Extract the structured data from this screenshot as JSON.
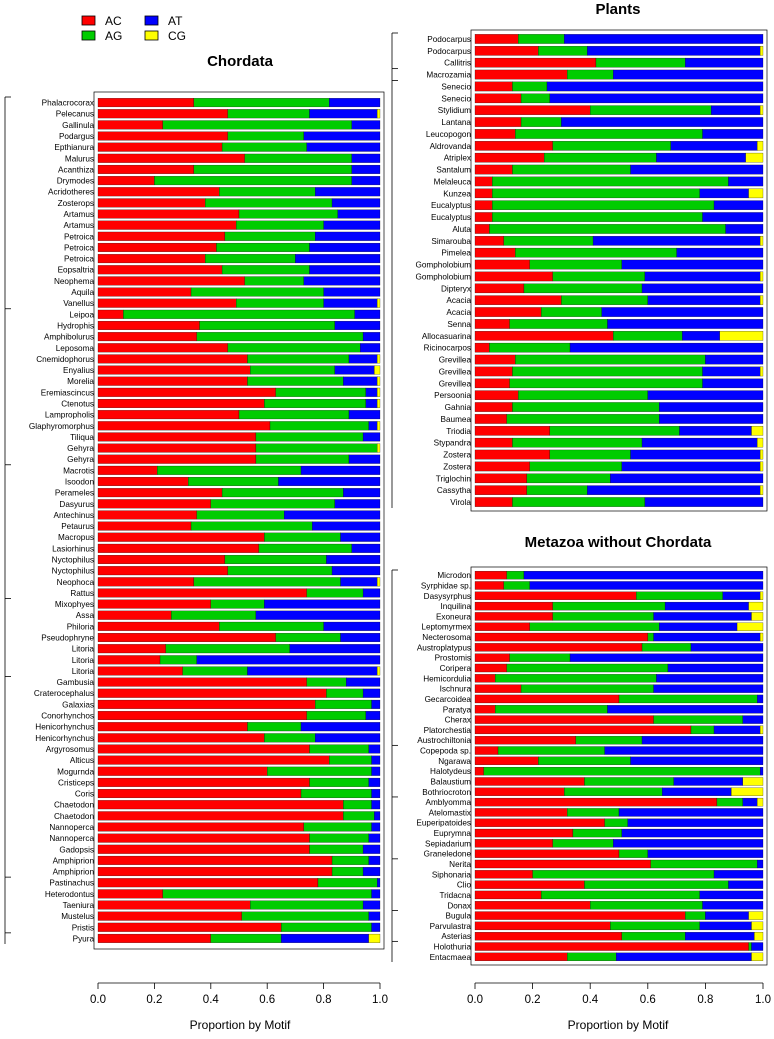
{
  "legend": {
    "items": [
      {
        "label": "AC",
        "color": "#ff0000"
      },
      {
        "label": "AG",
        "color": "#00cc00"
      },
      {
        "label": "AT",
        "color": "#0000ff"
      },
      {
        "label": "CG",
        "color": "#ffff00"
      }
    ]
  },
  "chart_data": [
    {
      "type": "bar",
      "orientation": "horizontal",
      "stacked": true,
      "title": "Chordata",
      "xlabel": "Proportion by Motif",
      "xlim": [
        0,
        1
      ],
      "xticks": [
        "0.0",
        "0.2",
        "0.4",
        "0.6",
        "0.8",
        "1.0"
      ],
      "series_names": [
        "AC",
        "AG",
        "AT",
        "CG"
      ],
      "categories": [
        "Phalacrocorax",
        "Pelecanus",
        "Gallinula",
        "Podargus",
        "Epthianura",
        "Malurus",
        "Acanthiza",
        "Drymodes",
        "Acridotheres",
        "Zosterops",
        "Artamus",
        "Artamus",
        "Petroica",
        "Petroica",
        "Petroica",
        "Eopsaltria",
        "Neophema",
        "Aquila",
        "Vanellus",
        "Leipoa",
        "Hydrophis",
        "Amphibolurus",
        "Leposoma",
        "Cnemidophorus",
        "Enyalius",
        "Morelia",
        "Eremiascincus",
        "Ctenotus",
        "Lampropholis",
        "Glaphyromorphus",
        "Tiliqua",
        "Gehyra",
        "Gehyra",
        "Macrotis",
        "Isoodon",
        "Perameles",
        "Dasyurus",
        "Antechinus",
        "Petaurus",
        "Macropus",
        "Lasiorhinus",
        "Nyctophilus",
        "Nyctophilus",
        "Neophoca",
        "Rattus",
        "Mixophyes",
        "Assa",
        "Philoria",
        "Pseudophryne",
        "Litoria",
        "Litoria",
        "Litoria",
        "Gambusia",
        "Craterocephalus",
        "Galaxias",
        "Conorhynchos",
        "Henicorhynchus",
        "Henicorhynchus",
        "Argyrosomus",
        "Alticus",
        "Mogurnda",
        "Cristiceps",
        "Coris",
        "Chaetodon",
        "Chaetodon",
        "Nannoperca",
        "Nannoperca",
        "Gadopsis",
        "Amphiprion",
        "Amphiprion",
        "Pastinachus",
        "Heterodontus",
        "Taeniura",
        "Mustelus",
        "Pristis",
        "Pyura"
      ],
      "values": [
        [
          0.34,
          0.48,
          0.18,
          0
        ],
        [
          0.46,
          0.29,
          0.24,
          0.01
        ],
        [
          0.23,
          0.67,
          0.1,
          0
        ],
        [
          0.46,
          0.27,
          0.27,
          0
        ],
        [
          0.44,
          0.3,
          0.26,
          0
        ],
        [
          0.52,
          0.38,
          0.1,
          0
        ],
        [
          0.34,
          0.56,
          0.1,
          0
        ],
        [
          0.2,
          0.7,
          0.1,
          0
        ],
        [
          0.43,
          0.34,
          0.23,
          0
        ],
        [
          0.38,
          0.45,
          0.17,
          0
        ],
        [
          0.5,
          0.35,
          0.15,
          0
        ],
        [
          0.49,
          0.31,
          0.2,
          0
        ],
        [
          0.45,
          0.32,
          0.23,
          0
        ],
        [
          0.42,
          0.33,
          0.25,
          0
        ],
        [
          0.38,
          0.32,
          0.3,
          0
        ],
        [
          0.44,
          0.31,
          0.25,
          0
        ],
        [
          0.52,
          0.21,
          0.27,
          0
        ],
        [
          0.33,
          0.47,
          0.2,
          0
        ],
        [
          0.49,
          0.31,
          0.19,
          0.01
        ],
        [
          0.09,
          0.82,
          0.09,
          0
        ],
        [
          0.36,
          0.48,
          0.16,
          0
        ],
        [
          0.35,
          0.59,
          0.06,
          0
        ],
        [
          0.46,
          0.47,
          0.07,
          0
        ],
        [
          0.53,
          0.36,
          0.1,
          0.01
        ],
        [
          0.54,
          0.3,
          0.14,
          0.02
        ],
        [
          0.53,
          0.34,
          0.12,
          0.01
        ],
        [
          0.63,
          0.32,
          0.04,
          0.01
        ],
        [
          0.59,
          0.36,
          0.04,
          0.01
        ],
        [
          0.5,
          0.39,
          0.11,
          0
        ],
        [
          0.61,
          0.35,
          0.03,
          0.01
        ],
        [
          0.56,
          0.38,
          0.06,
          0
        ],
        [
          0.56,
          0.43,
          0.0,
          0.01
        ],
        [
          0.56,
          0.33,
          0.11,
          0
        ],
        [
          0.21,
          0.51,
          0.28,
          0
        ],
        [
          0.32,
          0.32,
          0.36,
          0
        ],
        [
          0.44,
          0.43,
          0.13,
          0
        ],
        [
          0.4,
          0.44,
          0.16,
          0
        ],
        [
          0.35,
          0.31,
          0.34,
          0
        ],
        [
          0.33,
          0.43,
          0.24,
          0
        ],
        [
          0.59,
          0.27,
          0.14,
          0
        ],
        [
          0.57,
          0.33,
          0.1,
          0
        ],
        [
          0.45,
          0.36,
          0.19,
          0
        ],
        [
          0.46,
          0.37,
          0.17,
          0
        ],
        [
          0.34,
          0.52,
          0.13,
          0.01
        ],
        [
          0.74,
          0.2,
          0.06,
          0
        ],
        [
          0.4,
          0.19,
          0.41,
          0
        ],
        [
          0.26,
          0.3,
          0.44,
          0
        ],
        [
          0.43,
          0.37,
          0.2,
          0
        ],
        [
          0.63,
          0.23,
          0.14,
          0
        ],
        [
          0.24,
          0.44,
          0.32,
          0
        ],
        [
          0.22,
          0.13,
          0.65,
          0
        ],
        [
          0.3,
          0.23,
          0.46,
          0.01
        ],
        [
          0.74,
          0.14,
          0.12,
          0
        ],
        [
          0.81,
          0.13,
          0.06,
          0
        ],
        [
          0.77,
          0.2,
          0.03,
          0
        ],
        [
          0.74,
          0.21,
          0.05,
          0
        ],
        [
          0.53,
          0.19,
          0.28,
          0
        ],
        [
          0.59,
          0.18,
          0.23,
          0
        ],
        [
          0.75,
          0.21,
          0.04,
          0
        ],
        [
          0.82,
          0.15,
          0.03,
          0
        ],
        [
          0.6,
          0.37,
          0.03,
          0
        ],
        [
          0.75,
          0.21,
          0.04,
          0
        ],
        [
          0.72,
          0.25,
          0.03,
          0
        ],
        [
          0.87,
          0.1,
          0.03,
          0
        ],
        [
          0.87,
          0.11,
          0.02,
          0
        ],
        [
          0.73,
          0.24,
          0.03,
          0
        ],
        [
          0.75,
          0.21,
          0.04,
          0
        ],
        [
          0.75,
          0.19,
          0.06,
          0
        ],
        [
          0.83,
          0.13,
          0.04,
          0
        ],
        [
          0.83,
          0.11,
          0.06,
          0
        ],
        [
          0.78,
          0.21,
          0.01,
          0
        ],
        [
          0.23,
          0.74,
          0.03,
          0
        ],
        [
          0.54,
          0.4,
          0.06,
          0
        ],
        [
          0.51,
          0.45,
          0.04,
          0
        ],
        [
          0.65,
          0.32,
          0.03,
          0
        ],
        [
          0.4,
          0.25,
          0.31,
          0.04
        ]
      ]
    },
    {
      "type": "bar",
      "orientation": "horizontal",
      "stacked": true,
      "title": "Plants",
      "xlabel": "",
      "xlim": [
        0,
        1
      ],
      "xticks": [],
      "series_names": [
        "AC",
        "AG",
        "AT",
        "CG"
      ],
      "categories": [
        "Podocarpus",
        "Podocarpus",
        "Callitris",
        "Macrozamia",
        "Senecio",
        "Senecio",
        "Stylidium",
        "Lantana",
        "Leucopogon",
        "Aldrovanda",
        "Atriplex",
        "Santalum",
        "Melaleuca",
        "Kunzea",
        "Eucalyptus",
        "Eucalyptus",
        "Aluta",
        "Simarouba",
        "Pimelea",
        "Gompholobium",
        "Gompholobium",
        "Dipteryx",
        "Acacia",
        "Acacia",
        "Senna",
        "Allocasuarina",
        "Ricinocarpos",
        "Grevillea",
        "Grevillea",
        "Grevillea",
        "Persoonia",
        "Gahnia",
        "Baumea",
        "Triodia",
        "Stypandra",
        "Zostera",
        "Zostera",
        "Triglochin",
        "Cassytha",
        "Virola"
      ],
      "values": [
        [
          0.15,
          0.16,
          0.69,
          0
        ],
        [
          0.22,
          0.17,
          0.6,
          0.01
        ],
        [
          0.42,
          0.31,
          0.27,
          0
        ],
        [
          0.32,
          0.16,
          0.52,
          0
        ],
        [
          0.13,
          0.12,
          0.75,
          0
        ],
        [
          0.16,
          0.1,
          0.74,
          0
        ],
        [
          0.4,
          0.42,
          0.17,
          0.01
        ],
        [
          0.16,
          0.14,
          0.7,
          0
        ],
        [
          0.14,
          0.65,
          0.21,
          0
        ],
        [
          0.27,
          0.41,
          0.3,
          0.02
        ],
        [
          0.24,
          0.39,
          0.31,
          0.06
        ],
        [
          0.13,
          0.41,
          0.46,
          0
        ],
        [
          0.06,
          0.82,
          0.12,
          0
        ],
        [
          0.06,
          0.72,
          0.17,
          0.05
        ],
        [
          0.06,
          0.77,
          0.17,
          0
        ],
        [
          0.06,
          0.73,
          0.21,
          0
        ],
        [
          0.05,
          0.82,
          0.13,
          0
        ],
        [
          0.1,
          0.31,
          0.58,
          0.01
        ],
        [
          0.14,
          0.56,
          0.3,
          0
        ],
        [
          0.19,
          0.32,
          0.49,
          0
        ],
        [
          0.27,
          0.32,
          0.4,
          0.01
        ],
        [
          0.17,
          0.41,
          0.42,
          0
        ],
        [
          0.3,
          0.3,
          0.39,
          0.01
        ],
        [
          0.23,
          0.21,
          0.56,
          0
        ],
        [
          0.12,
          0.34,
          0.54,
          0
        ],
        [
          0.48,
          0.24,
          0.13,
          0.15
        ],
        [
          0.05,
          0.28,
          0.67,
          0
        ],
        [
          0.14,
          0.66,
          0.2,
          0
        ],
        [
          0.13,
          0.66,
          0.2,
          0.01
        ],
        [
          0.12,
          0.67,
          0.21,
          0
        ],
        [
          0.15,
          0.45,
          0.4,
          0
        ],
        [
          0.13,
          0.51,
          0.36,
          0
        ],
        [
          0.11,
          0.53,
          0.36,
          0
        ],
        [
          0.26,
          0.45,
          0.25,
          0.04
        ],
        [
          0.13,
          0.45,
          0.4,
          0.02
        ],
        [
          0.26,
          0.28,
          0.45,
          0.01
        ],
        [
          0.19,
          0.32,
          0.48,
          0.01
        ],
        [
          0.18,
          0.29,
          0.53,
          0
        ],
        [
          0.18,
          0.21,
          0.6,
          0.01
        ],
        [
          0.13,
          0.46,
          0.41,
          0
        ]
      ]
    },
    {
      "type": "bar",
      "orientation": "horizontal",
      "stacked": true,
      "title": "Metazoa without Chordata",
      "xlabel": "Proportion by Motif",
      "xlim": [
        0,
        1
      ],
      "xticks": [
        "0.0",
        "0.2",
        "0.4",
        "0.6",
        "0.8",
        "1.0"
      ],
      "series_names": [
        "AC",
        "AG",
        "AT",
        "CG"
      ],
      "categories": [
        "Microdon",
        "Syrphidae sp.",
        "Dasysyrphus",
        "Inquilina",
        "Exoneura",
        "Leptomyrmex",
        "Necterosoma",
        "Austroplatypus",
        "Prostomis",
        "Coripera",
        "Hemicordulia",
        "Ischnura",
        "Gecarcoidea",
        "Paratya",
        "Cherax",
        "Platorchestia",
        "Austrochiltonia",
        "Copepoda sp.",
        "Ngarawa",
        "Halotydeus",
        "Balaustium",
        "Bothriocroton",
        "Amblyomma",
        "Atelomastix",
        "Euperipatoides",
        "Euprymna",
        "Sepiadarium",
        "Graneledone",
        "Nerita",
        "Siphonaria",
        "Clio",
        "Tridacna",
        "Donax",
        "Bugula",
        "Parvulastra",
        "Asterias",
        "Holothuria",
        "Entacmaea"
      ],
      "values": [
        [
          0.11,
          0.06,
          0.83,
          0
        ],
        [
          0.1,
          0.09,
          0.81,
          0
        ],
        [
          0.56,
          0.3,
          0.13,
          0.01
        ],
        [
          0.27,
          0.39,
          0.29,
          0.05
        ],
        [
          0.27,
          0.35,
          0.34,
          0.04
        ],
        [
          0.19,
          0.45,
          0.27,
          0.09
        ],
        [
          0.6,
          0.02,
          0.37,
          0.01
        ],
        [
          0.58,
          0.17,
          0.25,
          0
        ],
        [
          0.12,
          0.21,
          0.67,
          0
        ],
        [
          0.11,
          0.56,
          0.33,
          0
        ],
        [
          0.07,
          0.56,
          0.37,
          0
        ],
        [
          0.16,
          0.46,
          0.38,
          0
        ],
        [
          0.5,
          0.48,
          0.02,
          0
        ],
        [
          0.07,
          0.39,
          0.54,
          0
        ],
        [
          0.62,
          0.31,
          0.07,
          0
        ],
        [
          0.75,
          0.08,
          0.16,
          0.01
        ],
        [
          0.35,
          0.23,
          0.42,
          0
        ],
        [
          0.08,
          0.37,
          0.55,
          0
        ],
        [
          0.22,
          0.32,
          0.46,
          0
        ],
        [
          0.03,
          0.96,
          0.01,
          0
        ],
        [
          0.38,
          0.31,
          0.24,
          0.07
        ],
        [
          0.31,
          0.34,
          0.24,
          0.11
        ],
        [
          0.84,
          0.09,
          0.05,
          0.02
        ],
        [
          0.32,
          0.18,
          0.5,
          0
        ],
        [
          0.45,
          0.08,
          0.47,
          0
        ],
        [
          0.34,
          0.17,
          0.49,
          0
        ],
        [
          0.27,
          0.21,
          0.52,
          0
        ],
        [
          0.5,
          0.1,
          0.4,
          0
        ],
        [
          0.61,
          0.37,
          0.02,
          0
        ],
        [
          0.2,
          0.63,
          0.17,
          0
        ],
        [
          0.38,
          0.5,
          0.12,
          0
        ],
        [
          0.23,
          0.55,
          0.22,
          0
        ],
        [
          0.4,
          0.39,
          0.21,
          0
        ],
        [
          0.73,
          0.07,
          0.15,
          0.05
        ],
        [
          0.47,
          0.31,
          0.18,
          0.04
        ],
        [
          0.51,
          0.22,
          0.24,
          0.03
        ],
        [
          0.95,
          0.01,
          0.04,
          0
        ],
        [
          0.32,
          0.17,
          0.47,
          0.04
        ]
      ]
    }
  ]
}
